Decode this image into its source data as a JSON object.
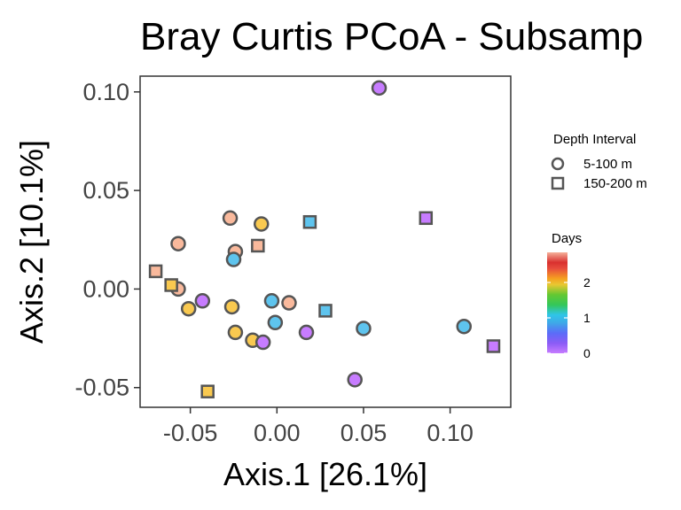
{
  "chart_data": {
    "type": "scatter",
    "title": "Bray Curtis PCoA - Subsamp",
    "xlabel": "Axis.1   [26.1%]",
    "ylabel": "Axis.2   [10.1%]",
    "xlim": [
      -0.079,
      0.135
    ],
    "ylim": [
      -0.06,
      0.108
    ],
    "x_ticks": [
      {
        "value": -0.05,
        "label": "-0.05"
      },
      {
        "value": 0.0,
        "label": "0.00"
      },
      {
        "value": 0.05,
        "label": "0.05"
      },
      {
        "value": 0.1,
        "label": "0.10"
      }
    ],
    "y_ticks": [
      {
        "value": -0.05,
        "label": "-0.05"
      },
      {
        "value": 0.0,
        "label": "0.00"
      },
      {
        "value": 0.05,
        "label": "0.05"
      },
      {
        "value": 0.1,
        "label": "0.10"
      }
    ],
    "grid": false,
    "legend": {
      "shape_title": "Depth Interval",
      "shape_items": [
        {
          "label": "5-100 m",
          "shape": "circle"
        },
        {
          "label": "150-200 m",
          "shape": "square"
        }
      ],
      "color_title": "Days",
      "color_ticks": [
        {
          "value": 0,
          "label": "0"
        },
        {
          "value": 1,
          "label": "1"
        },
        {
          "value": 2,
          "label": "2"
        }
      ],
      "color_range": [
        0,
        2.85
      ],
      "colors": [
        "#c77cff",
        "#8b5cf6",
        "#5b6cf8",
        "#3fa8e8",
        "#2fc5e8",
        "#34c759",
        "#64c832",
        "#e8c832",
        "#f5a020",
        "#e74c3c",
        "#d9302f",
        "#f5b09a"
      ],
      "placement": "right"
    },
    "points": [
      {
        "x": 0.059,
        "y": 0.102,
        "shape": "circle",
        "days": 0.0
      },
      {
        "x": -0.027,
        "y": 0.036,
        "shape": "circle",
        "days": 2.8
      },
      {
        "x": -0.009,
        "y": 0.033,
        "shape": "circle",
        "days": 2.2
      },
      {
        "x": -0.057,
        "y": 0.023,
        "shape": "circle",
        "days": 2.8
      },
      {
        "x": -0.024,
        "y": 0.019,
        "shape": "circle",
        "days": 2.8
      },
      {
        "x": -0.025,
        "y": 0.015,
        "shape": "circle",
        "days": 1.2
      },
      {
        "x": -0.057,
        "y": 0.0,
        "shape": "circle",
        "days": 2.8
      },
      {
        "x": -0.043,
        "y": -0.006,
        "shape": "circle",
        "days": 0.0
      },
      {
        "x": -0.051,
        "y": -0.01,
        "shape": "circle",
        "days": 2.2
      },
      {
        "x": -0.026,
        "y": -0.009,
        "shape": "circle",
        "days": 2.2
      },
      {
        "x": -0.003,
        "y": -0.006,
        "shape": "circle",
        "days": 1.2
      },
      {
        "x": 0.007,
        "y": -0.007,
        "shape": "circle",
        "days": 2.8
      },
      {
        "x": -0.001,
        "y": -0.017,
        "shape": "circle",
        "days": 1.2
      },
      {
        "x": -0.024,
        "y": -0.022,
        "shape": "circle",
        "days": 2.2
      },
      {
        "x": -0.014,
        "y": -0.026,
        "shape": "circle",
        "days": 2.2
      },
      {
        "x": -0.008,
        "y": -0.027,
        "shape": "circle",
        "days": 0.0
      },
      {
        "x": 0.017,
        "y": -0.022,
        "shape": "circle",
        "days": 0.0
      },
      {
        "x": 0.05,
        "y": -0.02,
        "shape": "circle",
        "days": 1.2
      },
      {
        "x": 0.045,
        "y": -0.046,
        "shape": "circle",
        "days": 0.0
      },
      {
        "x": 0.108,
        "y": -0.019,
        "shape": "circle",
        "days": 1.2
      },
      {
        "x": 0.019,
        "y": 0.034,
        "shape": "square",
        "days": 1.2
      },
      {
        "x": 0.086,
        "y": 0.036,
        "shape": "square",
        "days": 0.0
      },
      {
        "x": -0.011,
        "y": 0.022,
        "shape": "square",
        "days": 2.8
      },
      {
        "x": -0.07,
        "y": 0.009,
        "shape": "square",
        "days": 2.8
      },
      {
        "x": -0.061,
        "y": 0.002,
        "shape": "square",
        "days": 2.2
      },
      {
        "x": 0.028,
        "y": -0.011,
        "shape": "square",
        "days": 1.2
      },
      {
        "x": -0.04,
        "y": -0.052,
        "shape": "square",
        "days": 2.2
      },
      {
        "x": 0.125,
        "y": -0.029,
        "shape": "square",
        "days": 0.0
      }
    ]
  }
}
